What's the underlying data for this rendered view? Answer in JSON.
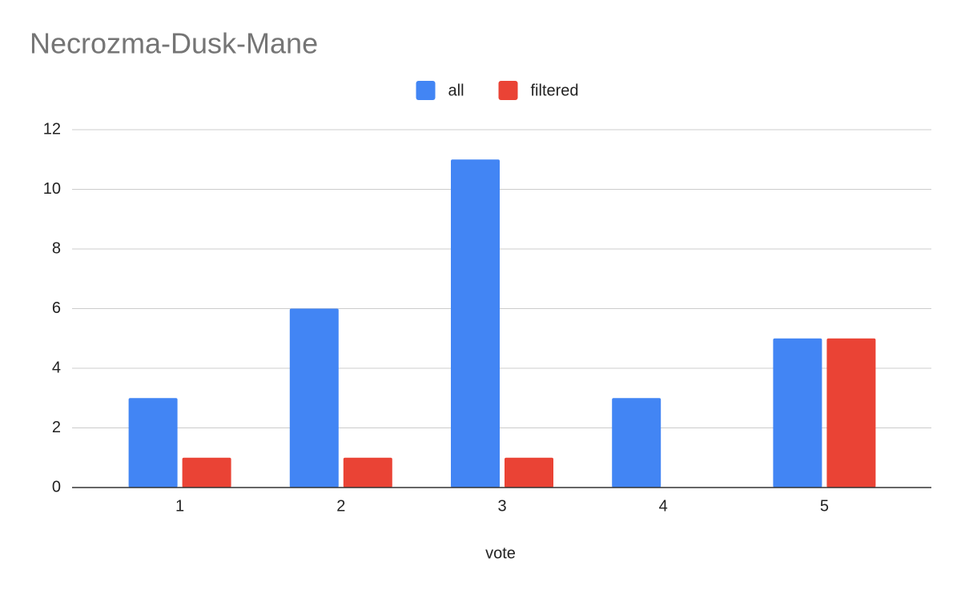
{
  "chart_data": {
    "type": "bar",
    "title": "Necrozma-Dusk-Mane",
    "x_label": "vote",
    "categories": [
      "1",
      "2",
      "3",
      "4",
      "5"
    ],
    "series": [
      {
        "name": "all",
        "color": "#4285f4",
        "values": [
          3,
          6,
          11,
          3,
          5
        ]
      },
      {
        "name": "filtered",
        "color": "#ea4335",
        "values": [
          1,
          1,
          1,
          0,
          5
        ]
      }
    ],
    "ylim": [
      0,
      12
    ],
    "yticks": [
      0,
      2,
      4,
      6,
      8,
      10,
      12
    ],
    "grid": true,
    "legend": "top"
  }
}
